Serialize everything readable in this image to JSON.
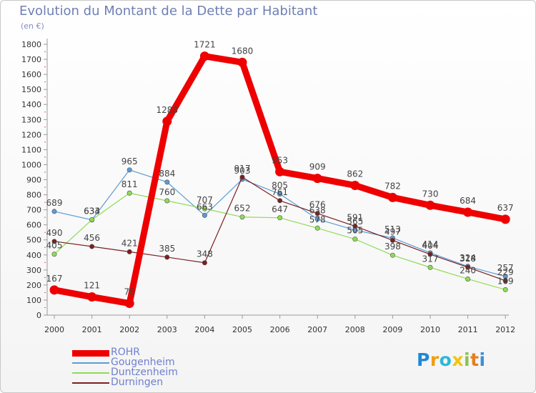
{
  "chart_data": {
    "type": "line",
    "title": "Evolution du Montant de la Dette par Habitant",
    "subtitle": "(en €)",
    "xlabel": "",
    "ylabel": "",
    "x": [
      "2000",
      "2001",
      "2002",
      "2003",
      "2004",
      "2005",
      "2006",
      "2007",
      "2008",
      "2009",
      "2010",
      "2011",
      "2012"
    ],
    "ylim": [
      0,
      1800
    ],
    "yticks": [
      0,
      100,
      200,
      300,
      400,
      500,
      600,
      700,
      800,
      900,
      1000,
      1100,
      1200,
      1300,
      1400,
      1500,
      1600,
      1700,
      1800
    ],
    "grid": false,
    "legend_position": "bottom-left",
    "series": [
      {
        "name": "ROHR",
        "color": "#ee0000",
        "values": [
          167,
          121,
          78,
          1288,
          1721,
          1680,
          953,
          909,
          862,
          782,
          730,
          684,
          637
        ]
      },
      {
        "name": "Gougenheim",
        "color": "#5b9bd5",
        "values": [
          689,
          633,
          965,
          884,
          663,
          903,
          805,
          638,
          565,
          513,
          414,
          324,
          257
        ]
      },
      {
        "name": "Duntzenheim",
        "color": "#8fdb56",
        "values": [
          405,
          634,
          811,
          760,
          707,
          652,
          647,
          578,
          505,
          398,
          317,
          240,
          169
        ]
      },
      {
        "name": "Durningen",
        "color": "#7b1f22",
        "values": [
          490,
          456,
          421,
          385,
          348,
          917,
          761,
          676,
          591,
          497,
          404,
          318,
          229
        ]
      }
    ]
  },
  "logo": {
    "text_letters": [
      "P",
      "r",
      "o",
      "x",
      "i",
      "t",
      "i"
    ],
    "colors": [
      "#1e88d6",
      "#f39c12",
      "#2bb8d9",
      "#f1c40f",
      "#8bc34a",
      "#e67e22",
      "#3b8fd9"
    ]
  }
}
